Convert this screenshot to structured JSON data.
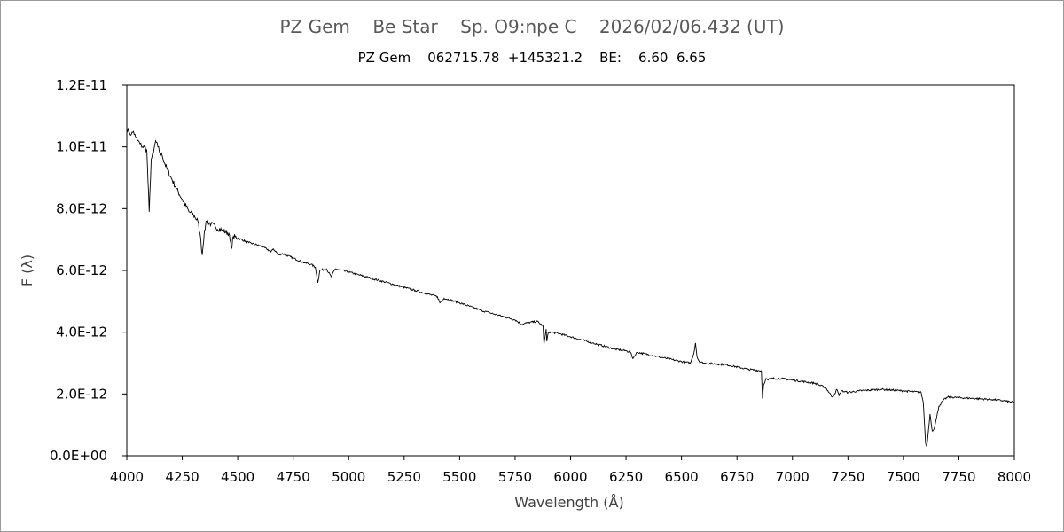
{
  "chart_data": {
    "type": "line",
    "title": "PZ Gem    Be Star    Sp. O9:npe C    2026/02/06.432 (UT)",
    "subtitle": "PZ Gem    062715.78  +145321.2    BE:    6.60  6.65",
    "xlabel": "Wavelength (Å)",
    "ylabel": "F (λ)",
    "xlim": [
      4000,
      8000
    ],
    "ylim": [
      0,
      1.2e-11
    ],
    "x_ticks": [
      4000,
      4250,
      4500,
      4750,
      5000,
      5250,
      5500,
      5750,
      6000,
      6250,
      6500,
      6750,
      7000,
      7250,
      7500,
      7750,
      8000
    ],
    "x_tick_labels": [
      "4000",
      "4250",
      "4500",
      "4750",
      "5000",
      "5250",
      "5500",
      "5750",
      "6000",
      "6250",
      "6500",
      "6750",
      "7000",
      "7250",
      "7500",
      "7750",
      "8000"
    ],
    "y_ticks": [
      0,
      2e-12,
      4e-12,
      6e-12,
      8e-12,
      1e-11,
      1.2e-11
    ],
    "y_tick_labels": [
      "0.0E+00",
      "2.0E-12",
      "4.0E-12",
      "6.0E-12",
      "8.0E-12",
      "1.0E-11",
      "1.2E-11"
    ],
    "grid": false,
    "legend": "none",
    "line_color": "#000000",
    "series": [
      {
        "x": [
          4000,
          4010,
          4020,
          4030,
          4040,
          4050,
          4060,
          4070,
          4080,
          4090,
          4101,
          4110,
          4120,
          4130,
          4140,
          4150,
          4160,
          4180,
          4200,
          4220,
          4250,
          4280,
          4300,
          4320,
          4330,
          4340,
          4350,
          4360,
          4380,
          4400,
          4430,
          4460,
          4471,
          4480,
          4500,
          4550,
          4600,
          4630,
          4650,
          4660,
          4686,
          4700,
          4750,
          4800,
          4830,
          4850,
          4861,
          4870,
          4900,
          4921,
          4940,
          5000,
          5050,
          5100,
          5200,
          5300,
          5400,
          5411,
          5430,
          5500,
          5600,
          5700,
          5750,
          5780,
          5800,
          5850,
          5876,
          5880,
          5890,
          5893,
          5900,
          5910,
          5950,
          6000,
          6100,
          6200,
          6250,
          6270,
          6280,
          6300,
          6400,
          6500,
          6540,
          6555,
          6563,
          6570,
          6580,
          6600,
          6700,
          6800,
          6860,
          6865,
          6870,
          6880,
          6890,
          6900,
          6950,
          7000,
          7100,
          7150,
          7180,
          7190,
          7200,
          7210,
          7220,
          7250,
          7300,
          7400,
          7500,
          7580,
          7590,
          7600,
          7605,
          7610,
          7620,
          7630,
          7640,
          7650,
          7660,
          7680,
          7700,
          7750,
          7800,
          7850,
          7900,
          7950,
          8000
        ],
        "y": [
          1.06e-11,
          1.05e-11,
          1.04e-11,
          1.05e-11,
          1.03e-11,
          1.02e-11,
          1.01e-11,
          1e-11,
          1e-11,
          9.9e-12,
          7.9e-12,
          9.6e-12,
          9.8e-12,
          1.02e-11,
          1e-11,
          9.8e-12,
          9.7e-12,
          9.3e-12,
          9e-12,
          8.7e-12,
          8.3e-12,
          7.9e-12,
          7.8e-12,
          7.6e-12,
          7.2e-12,
          6.5e-12,
          7.3e-12,
          7.6e-12,
          7.5e-12,
          7.4e-12,
          7.3e-12,
          7.2e-12,
          6.7e-12,
          7.1e-12,
          7.05e-12,
          6.9e-12,
          6.8e-12,
          6.7e-12,
          6.6e-12,
          6.7e-12,
          6.5e-12,
          6.55e-12,
          6.4e-12,
          6.25e-12,
          6.2e-12,
          6.1e-12,
          5.6e-12,
          6e-12,
          6.05e-12,
          5.8e-12,
          6.05e-12,
          5.95e-12,
          5.85e-12,
          5.75e-12,
          5.55e-12,
          5.35e-12,
          5.15e-12,
          4.95e-12,
          5.1e-12,
          4.95e-12,
          4.7e-12,
          4.5e-12,
          4.4e-12,
          4.25e-12,
          4.3e-12,
          4.35e-12,
          4.2e-12,
          3.6e-12,
          4.1e-12,
          3.7e-12,
          4e-12,
          4e-12,
          3.95e-12,
          3.85e-12,
          3.65e-12,
          3.45e-12,
          3.4e-12,
          3.35e-12,
          3.15e-12,
          3.35e-12,
          3.2e-12,
          3.05e-12,
          3e-12,
          3.3e-12,
          3.65e-12,
          3.2e-12,
          3.05e-12,
          3e-12,
          2.95e-12,
          2.8e-12,
          2.75e-12,
          1.85e-12,
          2.3e-12,
          2.5e-12,
          2.45e-12,
          2.5e-12,
          2.5e-12,
          2.45e-12,
          2.35e-12,
          2.2e-12,
          1.9e-12,
          2e-12,
          2.15e-12,
          1.95e-12,
          2.1e-12,
          2.05e-12,
          2.1e-12,
          2.15e-12,
          2.1e-12,
          2.05e-12,
          1.7e-12,
          4e-13,
          3e-13,
          6e-13,
          1.35e-12,
          8e-13,
          9e-13,
          1.25e-12,
          1.6e-12,
          1.8e-12,
          1.9e-12,
          1.88e-12,
          1.86e-12,
          1.84e-12,
          1.82e-12,
          1.78e-12,
          1.72e-12
        ]
      }
    ]
  }
}
